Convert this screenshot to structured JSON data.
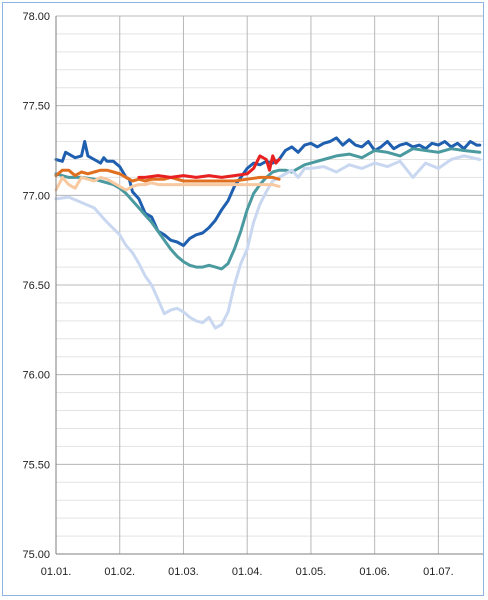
{
  "chart_data": {
    "type": "line",
    "title": "",
    "xlabel": "",
    "ylabel": "",
    "ylim": [
      75.0,
      78.0
    ],
    "y_ticks": [
      "75.00",
      "75.50",
      "76.00",
      "76.50",
      "77.00",
      "77.50",
      "78.00"
    ],
    "x_ticks": [
      "01.01.",
      "01.02.",
      "01.03.",
      "01.04.",
      "01.05.",
      "01.06.",
      "01.07."
    ],
    "grid": true,
    "legend": "none",
    "series": [
      {
        "color": "#1f5fb0",
        "x": [
          0,
          0.1,
          0.15,
          0.2,
          0.3,
          0.4,
          0.45,
          0.5,
          0.6,
          0.7,
          0.75,
          0.8,
          0.9,
          1.0,
          1.1,
          1.15,
          1.2,
          1.3,
          1.4,
          1.5,
          1.6,
          1.7,
          1.8,
          1.9,
          2.0,
          2.1,
          2.2,
          2.3,
          2.4,
          2.5,
          2.6,
          2.7,
          2.8,
          2.9,
          3.0,
          3.1,
          3.2,
          3.3,
          3.4,
          3.5,
          3.6,
          3.7,
          3.8,
          3.9,
          4.0,
          4.1,
          4.2,
          4.3,
          4.4,
          4.5,
          4.6,
          4.7,
          4.8,
          4.9,
          5.0,
          5.1,
          5.2,
          5.3,
          5.4,
          5.5,
          5.6,
          5.7,
          5.8,
          5.9,
          6.0,
          6.1,
          6.2,
          6.3,
          6.4,
          6.5,
          6.6,
          6.65
        ],
        "values": [
          77.2,
          77.19,
          77.24,
          77.23,
          77.21,
          77.22,
          77.3,
          77.22,
          77.2,
          77.18,
          77.21,
          77.19,
          77.19,
          77.16,
          77.1,
          77.09,
          77.02,
          76.98,
          76.9,
          76.88,
          76.8,
          76.78,
          76.75,
          76.74,
          76.72,
          76.76,
          76.78,
          76.79,
          76.82,
          76.86,
          76.92,
          76.97,
          77.05,
          77.1,
          77.15,
          77.18,
          77.17,
          77.19,
          77.18,
          77.2,
          77.25,
          77.27,
          77.24,
          77.28,
          77.29,
          77.27,
          77.29,
          77.3,
          77.32,
          77.28,
          77.31,
          77.28,
          77.27,
          77.3,
          77.25,
          77.27,
          77.3,
          77.26,
          77.28,
          77.29,
          77.27,
          77.28,
          77.26,
          77.29,
          77.28,
          77.3,
          77.27,
          77.29,
          77.26,
          77.3,
          77.28,
          77.28
        ]
      },
      {
        "color": "#4a9aa0",
        "x": [
          0,
          0.2,
          0.4,
          0.6,
          0.8,
          0.9,
          1.0,
          1.1,
          1.2,
          1.3,
          1.4,
          1.5,
          1.6,
          1.7,
          1.8,
          1.9,
          2.0,
          2.1,
          2.2,
          2.3,
          2.4,
          2.5,
          2.6,
          2.7,
          2.8,
          2.9,
          3.0,
          3.1,
          3.2,
          3.3,
          3.4,
          3.5,
          3.6,
          3.7,
          3.8,
          3.9,
          4.0,
          4.2,
          4.4,
          4.6,
          4.8,
          5.0,
          5.2,
          5.4,
          5.6,
          5.8,
          6.0,
          6.2,
          6.4,
          6.65
        ],
        "values": [
          77.12,
          77.1,
          77.1,
          77.09,
          77.07,
          77.06,
          77.04,
          77.01,
          76.97,
          76.93,
          76.89,
          76.85,
          76.8,
          76.75,
          76.7,
          76.66,
          76.63,
          76.61,
          76.6,
          76.6,
          76.61,
          76.6,
          76.59,
          76.62,
          76.7,
          76.8,
          76.92,
          77.01,
          77.06,
          77.1,
          77.13,
          77.14,
          77.14,
          77.13,
          77.15,
          77.17,
          77.18,
          77.2,
          77.22,
          77.23,
          77.21,
          77.25,
          77.24,
          77.22,
          77.26,
          77.25,
          77.24,
          77.26,
          77.25,
          77.24
        ]
      },
      {
        "color": "#c9d8f0",
        "x": [
          0,
          0.2,
          0.4,
          0.6,
          0.8,
          1.0,
          1.1,
          1.2,
          1.3,
          1.4,
          1.5,
          1.6,
          1.7,
          1.8,
          1.9,
          2.0,
          2.1,
          2.2,
          2.3,
          2.4,
          2.5,
          2.6,
          2.7,
          2.8,
          2.9,
          3.0,
          3.1,
          3.2,
          3.3,
          3.4,
          3.5,
          3.6,
          3.7,
          3.8,
          3.9,
          4.0,
          4.2,
          4.4,
          4.6,
          4.8,
          5.0,
          5.2,
          5.4,
          5.6,
          5.8,
          6.0,
          6.2,
          6.4,
          6.65
        ],
        "values": [
          76.98,
          76.99,
          76.96,
          76.93,
          76.85,
          76.78,
          76.72,
          76.68,
          76.62,
          76.55,
          76.5,
          76.42,
          76.34,
          76.36,
          76.37,
          76.35,
          76.32,
          76.3,
          76.29,
          76.32,
          76.26,
          76.28,
          76.35,
          76.5,
          76.62,
          76.7,
          76.85,
          76.95,
          77.02,
          77.08,
          77.1,
          77.12,
          77.14,
          77.1,
          77.15,
          77.15,
          77.16,
          77.13,
          77.17,
          77.15,
          77.18,
          77.16,
          77.19,
          77.1,
          77.18,
          77.15,
          77.2,
          77.22,
          77.2
        ]
      },
      {
        "color": "#e07020",
        "x": [
          0,
          0.1,
          0.2,
          0.3,
          0.4,
          0.5,
          0.6,
          0.7,
          0.8,
          0.9,
          1.0,
          1.1,
          1.2,
          1.3,
          1.4,
          1.5,
          1.6,
          1.7,
          1.8,
          1.9,
          2.0,
          2.2,
          2.4,
          2.6,
          2.8,
          3.0,
          3.2,
          3.4,
          3.5
        ],
        "values": [
          77.11,
          77.14,
          77.14,
          77.11,
          77.13,
          77.12,
          77.13,
          77.14,
          77.14,
          77.13,
          77.12,
          77.1,
          77.08,
          77.09,
          77.08,
          77.09,
          77.09,
          77.09,
          77.1,
          77.09,
          77.08,
          77.08,
          77.08,
          77.08,
          77.08,
          77.09,
          77.1,
          77.1,
          77.09
        ]
      },
      {
        "color": "#f8c9a0",
        "x": [
          0,
          0.1,
          0.2,
          0.3,
          0.4,
          0.5,
          0.6,
          0.7,
          0.8,
          0.9,
          1.0,
          1.1,
          1.2,
          1.3,
          1.4,
          1.5,
          1.6,
          1.8,
          2.0,
          2.2,
          2.4,
          2.6,
          2.8,
          3.0,
          3.2,
          3.4,
          3.5
        ],
        "values": [
          77.03,
          77.1,
          77.06,
          77.04,
          77.1,
          77.09,
          77.08,
          77.1,
          77.09,
          77.07,
          77.05,
          77.03,
          77.05,
          77.06,
          77.06,
          77.07,
          77.06,
          77.06,
          77.06,
          77.06,
          77.06,
          77.06,
          77.06,
          77.06,
          77.06,
          77.06,
          77.05
        ]
      },
      {
        "color": "#e82020",
        "x": [
          1.3,
          1.4,
          1.6,
          1.8,
          2.0,
          2.2,
          2.4,
          2.6,
          2.8,
          3.0,
          3.1,
          3.2,
          3.3,
          3.35,
          3.4,
          3.45,
          3.5
        ],
        "values": [
          77.1,
          77.1,
          77.11,
          77.1,
          77.11,
          77.1,
          77.11,
          77.1,
          77.11,
          77.12,
          77.15,
          77.22,
          77.2,
          77.14,
          77.22,
          77.18,
          77.2
        ]
      }
    ]
  }
}
